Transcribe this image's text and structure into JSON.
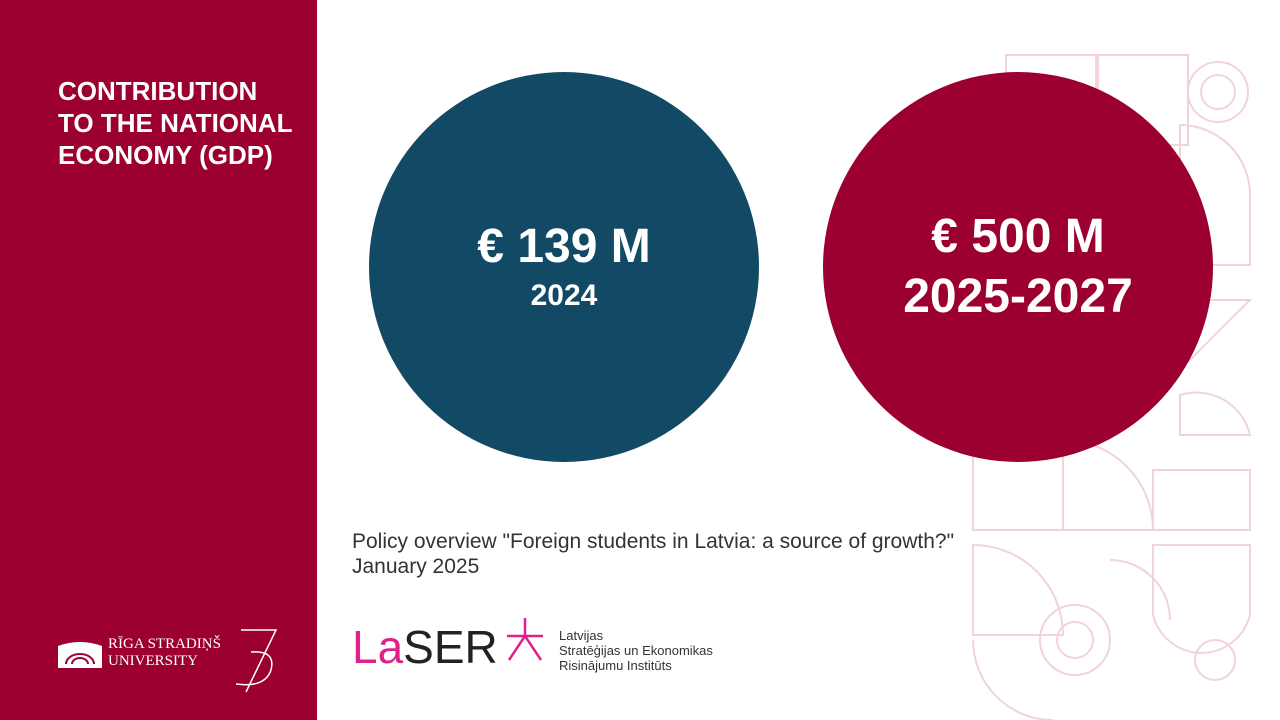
{
  "sidebar": {
    "title": "CONTRIBUTION TO THE NATIONAL ECONOMY (GDP)"
  },
  "circles": [
    {
      "amount": "€ 139 M",
      "period": "2024"
    },
    {
      "amount": "€ 500 M",
      "period": "2025-2027"
    }
  ],
  "source": "Policy overview \"Foreign students in Latvia: a source of growth?\" January 2025",
  "university_logo": {
    "line_1": "Rīga Stradiņš",
    "line_2": "University"
  },
  "laser_logo": {
    "name_1": "La",
    "name_2": "SER",
    "lines": [
      "Latvijas",
      "Stratēģijas un Ekonomikas",
      "Risinājumu Institūts"
    ]
  }
}
